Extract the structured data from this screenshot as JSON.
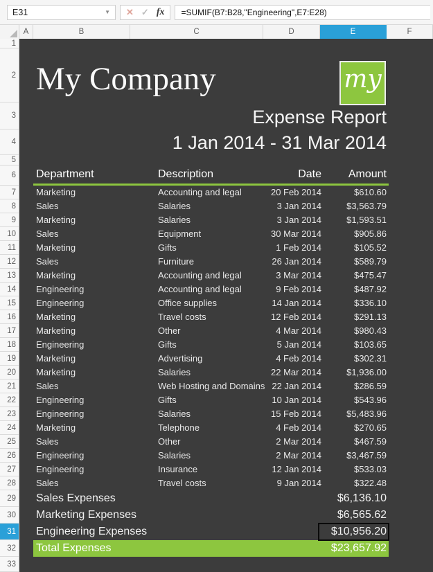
{
  "colors": {
    "accent_green": "#8dc63f",
    "selection_blue": "#2aa0d8",
    "sheet_bg": "#3c3c3c"
  },
  "formula_bar": {
    "name_box_value": "E31",
    "cancel_label": "✕",
    "enter_label": "✓",
    "fx_label": "fx",
    "formula": "=SUMIF(B7:B28,\"Engineering\",E7:E28)"
  },
  "grid": {
    "column_headers": [
      "A",
      "B",
      "C",
      "D",
      "E",
      "F"
    ],
    "row_numbers": [
      1,
      2,
      3,
      4,
      5,
      6,
      7,
      8,
      9,
      10,
      11,
      12,
      13,
      14,
      15,
      16,
      17,
      18,
      19,
      20,
      21,
      22,
      23,
      24,
      25,
      26,
      27,
      28,
      29,
      30,
      31,
      32,
      33
    ],
    "selected_column": "E",
    "selected_row": 31,
    "selected_cell": "E31"
  },
  "report": {
    "company_name": "My Company",
    "logo_text": "my",
    "report_title": "Expense Report",
    "date_range": "1 Jan 2014 - 31 Mar 2014",
    "columns": {
      "department": "Department",
      "description": "Description",
      "date": "Date",
      "amount": "Amount"
    },
    "expenses": [
      {
        "department": "Marketing",
        "description": "Accounting and legal",
        "date": "20 Feb 2014",
        "amount": "$610.60"
      },
      {
        "department": "Sales",
        "description": "Salaries",
        "date": "3 Jan 2014",
        "amount": "$3,563.79"
      },
      {
        "department": "Marketing",
        "description": "Salaries",
        "date": "3 Jan 2014",
        "amount": "$1,593.51"
      },
      {
        "department": "Sales",
        "description": "Equipment",
        "date": "30 Mar 2014",
        "amount": "$905.86"
      },
      {
        "department": "Marketing",
        "description": "Gifts",
        "date": "1 Feb 2014",
        "amount": "$105.52"
      },
      {
        "department": "Sales",
        "description": "Furniture",
        "date": "26 Jan 2014",
        "amount": "$589.79"
      },
      {
        "department": "Marketing",
        "description": "Accounting and legal",
        "date": "3 Mar 2014",
        "amount": "$475.47"
      },
      {
        "department": "Engineering",
        "description": "Accounting and legal",
        "date": "9 Feb 2014",
        "amount": "$487.92"
      },
      {
        "department": "Engineering",
        "description": "Office supplies",
        "date": "14 Jan 2014",
        "amount": "$336.10"
      },
      {
        "department": "Marketing",
        "description": "Travel costs",
        "date": "12 Feb 2014",
        "amount": "$291.13"
      },
      {
        "department": "Marketing",
        "description": "Other",
        "date": "4 Mar 2014",
        "amount": "$980.43"
      },
      {
        "department": "Engineering",
        "description": "Gifts",
        "date": "5 Jan 2014",
        "amount": "$103.65"
      },
      {
        "department": "Marketing",
        "description": "Advertising",
        "date": "4 Feb 2014",
        "amount": "$302.31"
      },
      {
        "department": "Marketing",
        "description": "Salaries",
        "date": "22 Mar 2014",
        "amount": "$1,936.00"
      },
      {
        "department": "Sales",
        "description": "Web Hosting and Domains",
        "date": "22 Jan 2014",
        "amount": "$286.59"
      },
      {
        "department": "Engineering",
        "description": "Gifts",
        "date": "10 Jan 2014",
        "amount": "$543.96"
      },
      {
        "department": "Engineering",
        "description": "Salaries",
        "date": "15 Feb 2014",
        "amount": "$5,483.96"
      },
      {
        "department": "Marketing",
        "description": "Telephone",
        "date": "4 Feb 2014",
        "amount": "$270.65"
      },
      {
        "department": "Sales",
        "description": "Other",
        "date": "2 Mar 2014",
        "amount": "$467.59"
      },
      {
        "department": "Engineering",
        "description": "Salaries",
        "date": "2 Mar 2014",
        "amount": "$3,467.59"
      },
      {
        "department": "Engineering",
        "description": "Insurance",
        "date": "12 Jan 2014",
        "amount": "$533.03"
      },
      {
        "department": "Sales",
        "description": "Travel costs",
        "date": "9 Jan 2014",
        "amount": "$322.48"
      }
    ],
    "summary": [
      {
        "label": "Sales Expenses",
        "value": "$6,136.10"
      },
      {
        "label": "Marketing Expenses",
        "value": "$6,565.62"
      },
      {
        "label": "Engineering Expenses",
        "value": "$10,956.20",
        "selected": true
      },
      {
        "label": "Total Expenses",
        "value": "$23,657.92",
        "highlight": true
      }
    ]
  }
}
